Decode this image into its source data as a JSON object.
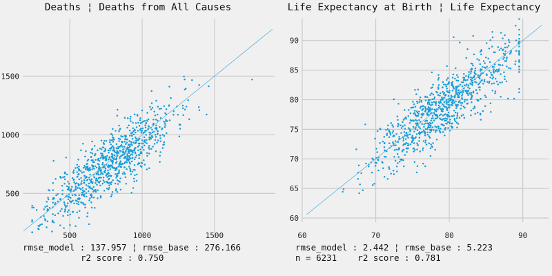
{
  "chart_data": [
    {
      "type": "scatter",
      "title": "Deaths ¦ Deaths from All Causes",
      "caption_line1": "rmse_model : 137.957 ¦ rmse_base : 276.166",
      "caption_line2": "r2 score : 0.750",
      "xlim": [
        175,
        1920
      ],
      "ylim": [
        120,
        1990
      ],
      "xticks": [
        500,
        1000,
        1500
      ],
      "yticks": [
        500,
        1000,
        1500
      ],
      "identity_line": [
        [
          180,
          180
        ],
        [
          1900,
          1900
        ]
      ],
      "point_color": "#1a9cd8",
      "line_color": "#5ab4e0",
      "grid": true,
      "point_cloud": {
        "count": 900,
        "trend_slope": 0.93,
        "trend_intercept": 40,
        "x_center": 780,
        "x_spread": 220,
        "x_min": 240,
        "x_max": 1760,
        "y_noise": 130
      }
    },
    {
      "type": "scatter",
      "title": "Life Expectancy at Birth ¦ Life Expectancy",
      "caption_line1": "rmse_model : 2.442 ¦ rmse_base : 5.223",
      "caption_line2": "n = 6231    r2 score : 0.781",
      "xlim": [
        60,
        93.5
      ],
      "ylim": [
        59.3,
        93.7
      ],
      "xticks": [
        60,
        70,
        80,
        90
      ],
      "yticks": [
        60,
        65,
        70,
        75,
        80,
        85,
        90
      ],
      "identity_line": [
        [
          60.6,
          60.6
        ],
        [
          92.6,
          92.6
        ]
      ],
      "point_color": "#1a9cd8",
      "line_color": "#5ab4e0",
      "grid": true,
      "point_cloud": {
        "count": 900,
        "trend_slope": 0.9,
        "trend_intercept": 7.5,
        "x_center": 79,
        "x_spread": 5,
        "x_min": 61,
        "x_max": 89.5,
        "y_noise": 2.6
      }
    }
  ]
}
